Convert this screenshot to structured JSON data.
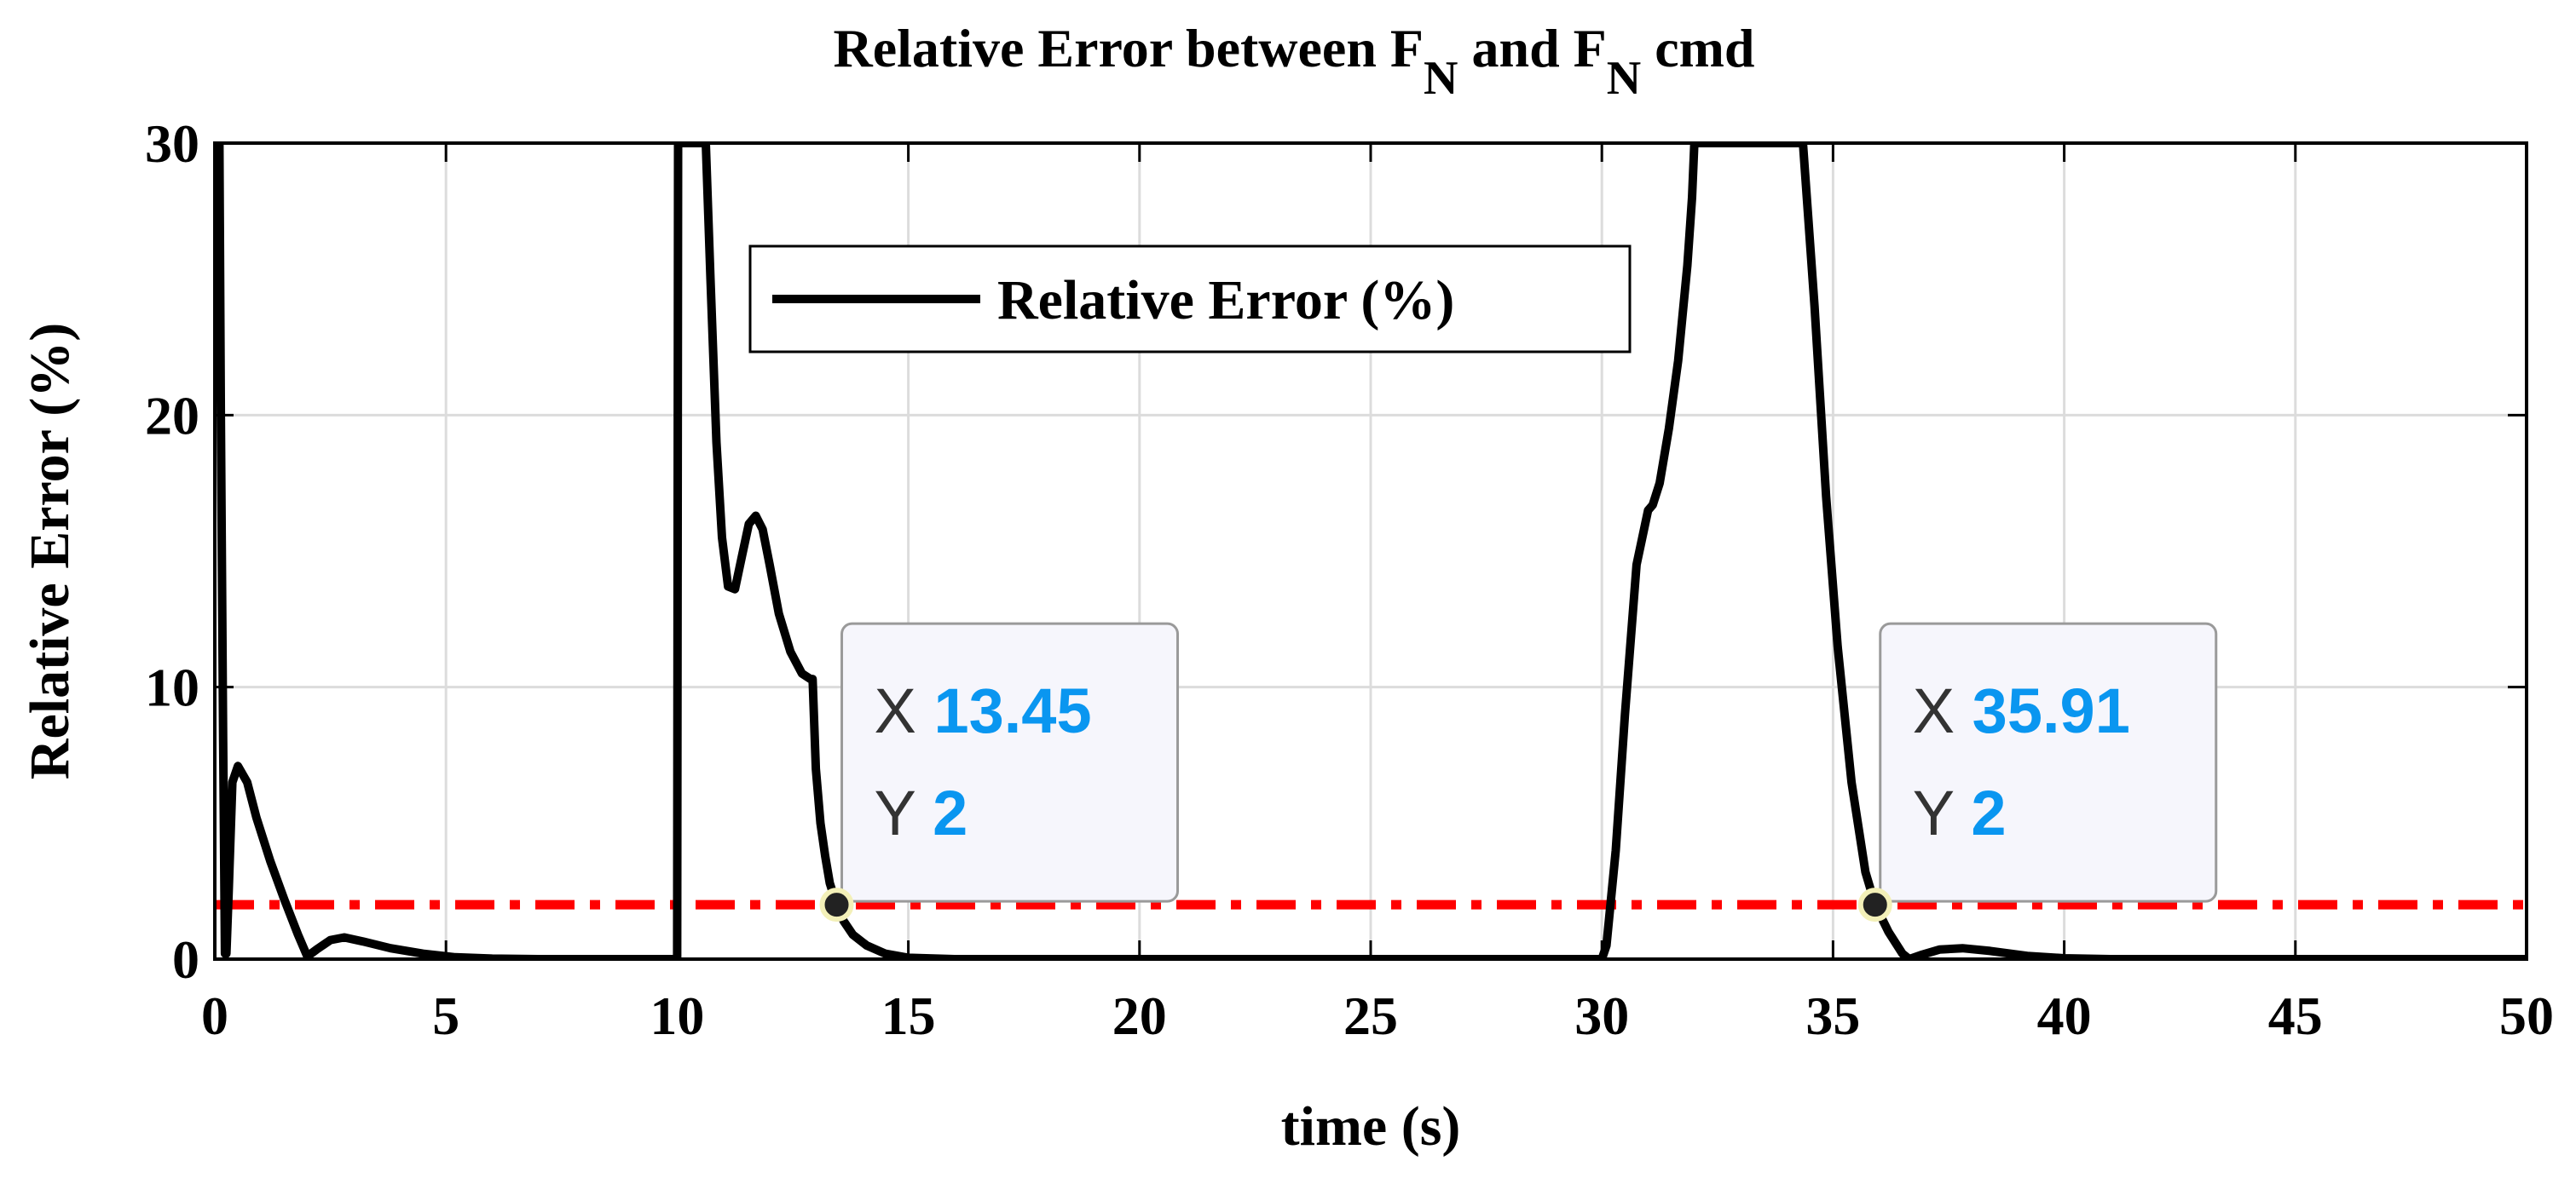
{
  "chart_data": {
    "type": "line",
    "title": {
      "prefix": "Relative Error between F",
      "sub1": "N",
      "middle": " and F",
      "sub2": "N",
      "suffix": " cmd"
    },
    "xlabel": "time (s)",
    "ylabel": "Relative Error (%)",
    "xlim": [
      0,
      50
    ],
    "ylim": [
      0,
      30
    ],
    "xticks": [
      0,
      5,
      10,
      15,
      20,
      25,
      30,
      35,
      40,
      45,
      50
    ],
    "yticks": [
      0,
      10,
      20,
      30
    ],
    "grid": true,
    "legend_position": "top-left",
    "series": [
      {
        "name": "Relative Error (%)",
        "color": "#000000",
        "style": "solid",
        "points": [
          [
            0.0,
            30
          ],
          [
            0.1,
            30
          ],
          [
            0.13,
            20
          ],
          [
            0.18,
            8
          ],
          [
            0.22,
            0.2
          ],
          [
            0.25,
            0.2
          ],
          [
            0.3,
            2.5
          ],
          [
            0.38,
            6.5
          ],
          [
            0.5,
            7.1
          ],
          [
            0.7,
            6.5
          ],
          [
            0.9,
            5.2
          ],
          [
            1.2,
            3.6
          ],
          [
            1.5,
            2.2
          ],
          [
            1.8,
            0.9
          ],
          [
            2.0,
            0.1
          ],
          [
            2.2,
            0.35
          ],
          [
            2.5,
            0.7
          ],
          [
            2.8,
            0.8
          ],
          [
            3.2,
            0.65
          ],
          [
            3.8,
            0.4
          ],
          [
            4.5,
            0.2
          ],
          [
            5.2,
            0.07
          ],
          [
            6.0,
            0.02
          ],
          [
            7.0,
            0.0
          ],
          [
            10.0,
            0.0
          ],
          [
            10.02,
            30
          ],
          [
            10.62,
            30
          ],
          [
            10.72,
            25
          ],
          [
            10.85,
            19
          ],
          [
            10.97,
            15.5
          ],
          [
            11.1,
            13.7
          ],
          [
            11.25,
            13.6
          ],
          [
            11.4,
            14.8
          ],
          [
            11.55,
            16.0
          ],
          [
            11.7,
            16.3
          ],
          [
            11.85,
            15.8
          ],
          [
            12.0,
            14.5
          ],
          [
            12.2,
            12.7
          ],
          [
            12.45,
            11.3
          ],
          [
            12.7,
            10.5
          ],
          [
            12.88,
            10.3
          ],
          [
            12.93,
            10.3
          ],
          [
            13.0,
            7
          ],
          [
            13.1,
            5
          ],
          [
            13.2,
            3.8
          ],
          [
            13.3,
            2.8
          ],
          [
            13.45,
            2.0
          ],
          [
            13.6,
            1.4
          ],
          [
            13.8,
            0.9
          ],
          [
            14.1,
            0.5
          ],
          [
            14.5,
            0.2
          ],
          [
            15.0,
            0.05
          ],
          [
            16.0,
            0.0
          ],
          [
            30.0,
            0.0
          ],
          [
            30.1,
            0.5
          ],
          [
            30.3,
            4
          ],
          [
            30.5,
            9
          ],
          [
            30.75,
            14.5
          ],
          [
            31.0,
            16.5
          ],
          [
            31.1,
            16.7
          ],
          [
            31.25,
            17.5
          ],
          [
            31.45,
            19.5
          ],
          [
            31.65,
            22
          ],
          [
            31.85,
            25.5
          ],
          [
            31.95,
            28
          ],
          [
            32.0,
            30
          ],
          [
            34.35,
            30
          ],
          [
            34.6,
            24
          ],
          [
            34.85,
            17
          ],
          [
            35.1,
            11.5
          ],
          [
            35.4,
            6.5
          ],
          [
            35.7,
            3.2
          ],
          [
            35.91,
            2.0
          ],
          [
            36.2,
            1.0
          ],
          [
            36.5,
            0.2
          ],
          [
            36.65,
            0.0
          ],
          [
            36.9,
            0.15
          ],
          [
            37.3,
            0.35
          ],
          [
            37.8,
            0.4
          ],
          [
            38.4,
            0.3
          ],
          [
            39.2,
            0.12
          ],
          [
            40.0,
            0.03
          ],
          [
            41.0,
            0.0
          ],
          [
            50.0,
            0.0
          ]
        ]
      },
      {
        "name": "",
        "color": "#ff0000",
        "style": "dash-dot",
        "points": [
          [
            0,
            2
          ],
          [
            50,
            2
          ]
        ]
      }
    ],
    "datatips": [
      {
        "x_label": "X",
        "x_value": "13.45",
        "y_label": "Y",
        "y_value": "2",
        "x": 13.45,
        "y": 2
      },
      {
        "x_label": "X",
        "x_value": "35.91",
        "y_label": "Y",
        "y_value": "2",
        "x": 35.91,
        "y": 2
      }
    ],
    "colors": {
      "datatip_value": "#0a96f0",
      "datatip_label": "#333333",
      "grid": "#dcdcdc"
    }
  }
}
